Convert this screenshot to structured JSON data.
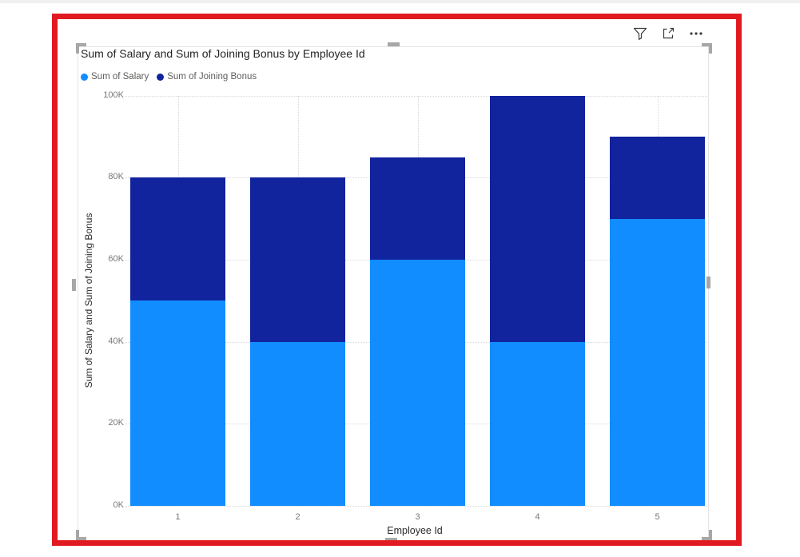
{
  "visual": {
    "toolbar": [
      {
        "name": "filter-icon",
        "label": "Filter"
      },
      {
        "name": "focus-mode-icon",
        "label": "Focus mode"
      },
      {
        "name": "more-options-icon",
        "label": "More options"
      }
    ]
  },
  "chart_data": {
    "type": "bar",
    "variant": "stacked-column",
    "title": "Sum of Salary and Sum of Joining Bonus by Employee Id",
    "categories": [
      "1",
      "2",
      "3",
      "4",
      "5"
    ],
    "series": [
      {
        "name": "Sum of Salary",
        "color": "#118DFF",
        "values": [
          50000,
          40000,
          60000,
          40000,
          70000
        ]
      },
      {
        "name": "Sum of Joining Bonus",
        "color": "#12239E",
        "values": [
          30000,
          40000,
          25000,
          60000,
          20000
        ]
      }
    ],
    "xlabel": "Employee Id",
    "ylabel": "Sum of Salary and Sum of Joining Bonus",
    "ylim": [
      0,
      100000
    ],
    "yticks": [
      {
        "value": 0,
        "label": "0K"
      },
      {
        "value": 20000,
        "label": "20K"
      },
      {
        "value": 40000,
        "label": "40K"
      },
      {
        "value": 60000,
        "label": "60K"
      },
      {
        "value": 80000,
        "label": "80K"
      },
      {
        "value": 100000,
        "label": "100K"
      }
    ],
    "grid": true,
    "legend_position": "top-left"
  },
  "colors": {
    "selection_highlight": "#e11a22",
    "series1": "#118DFF",
    "series2": "#12239E",
    "handles": "#a9a7a5",
    "icons": "#3b3a39",
    "gridline": "#d8d8d8"
  }
}
